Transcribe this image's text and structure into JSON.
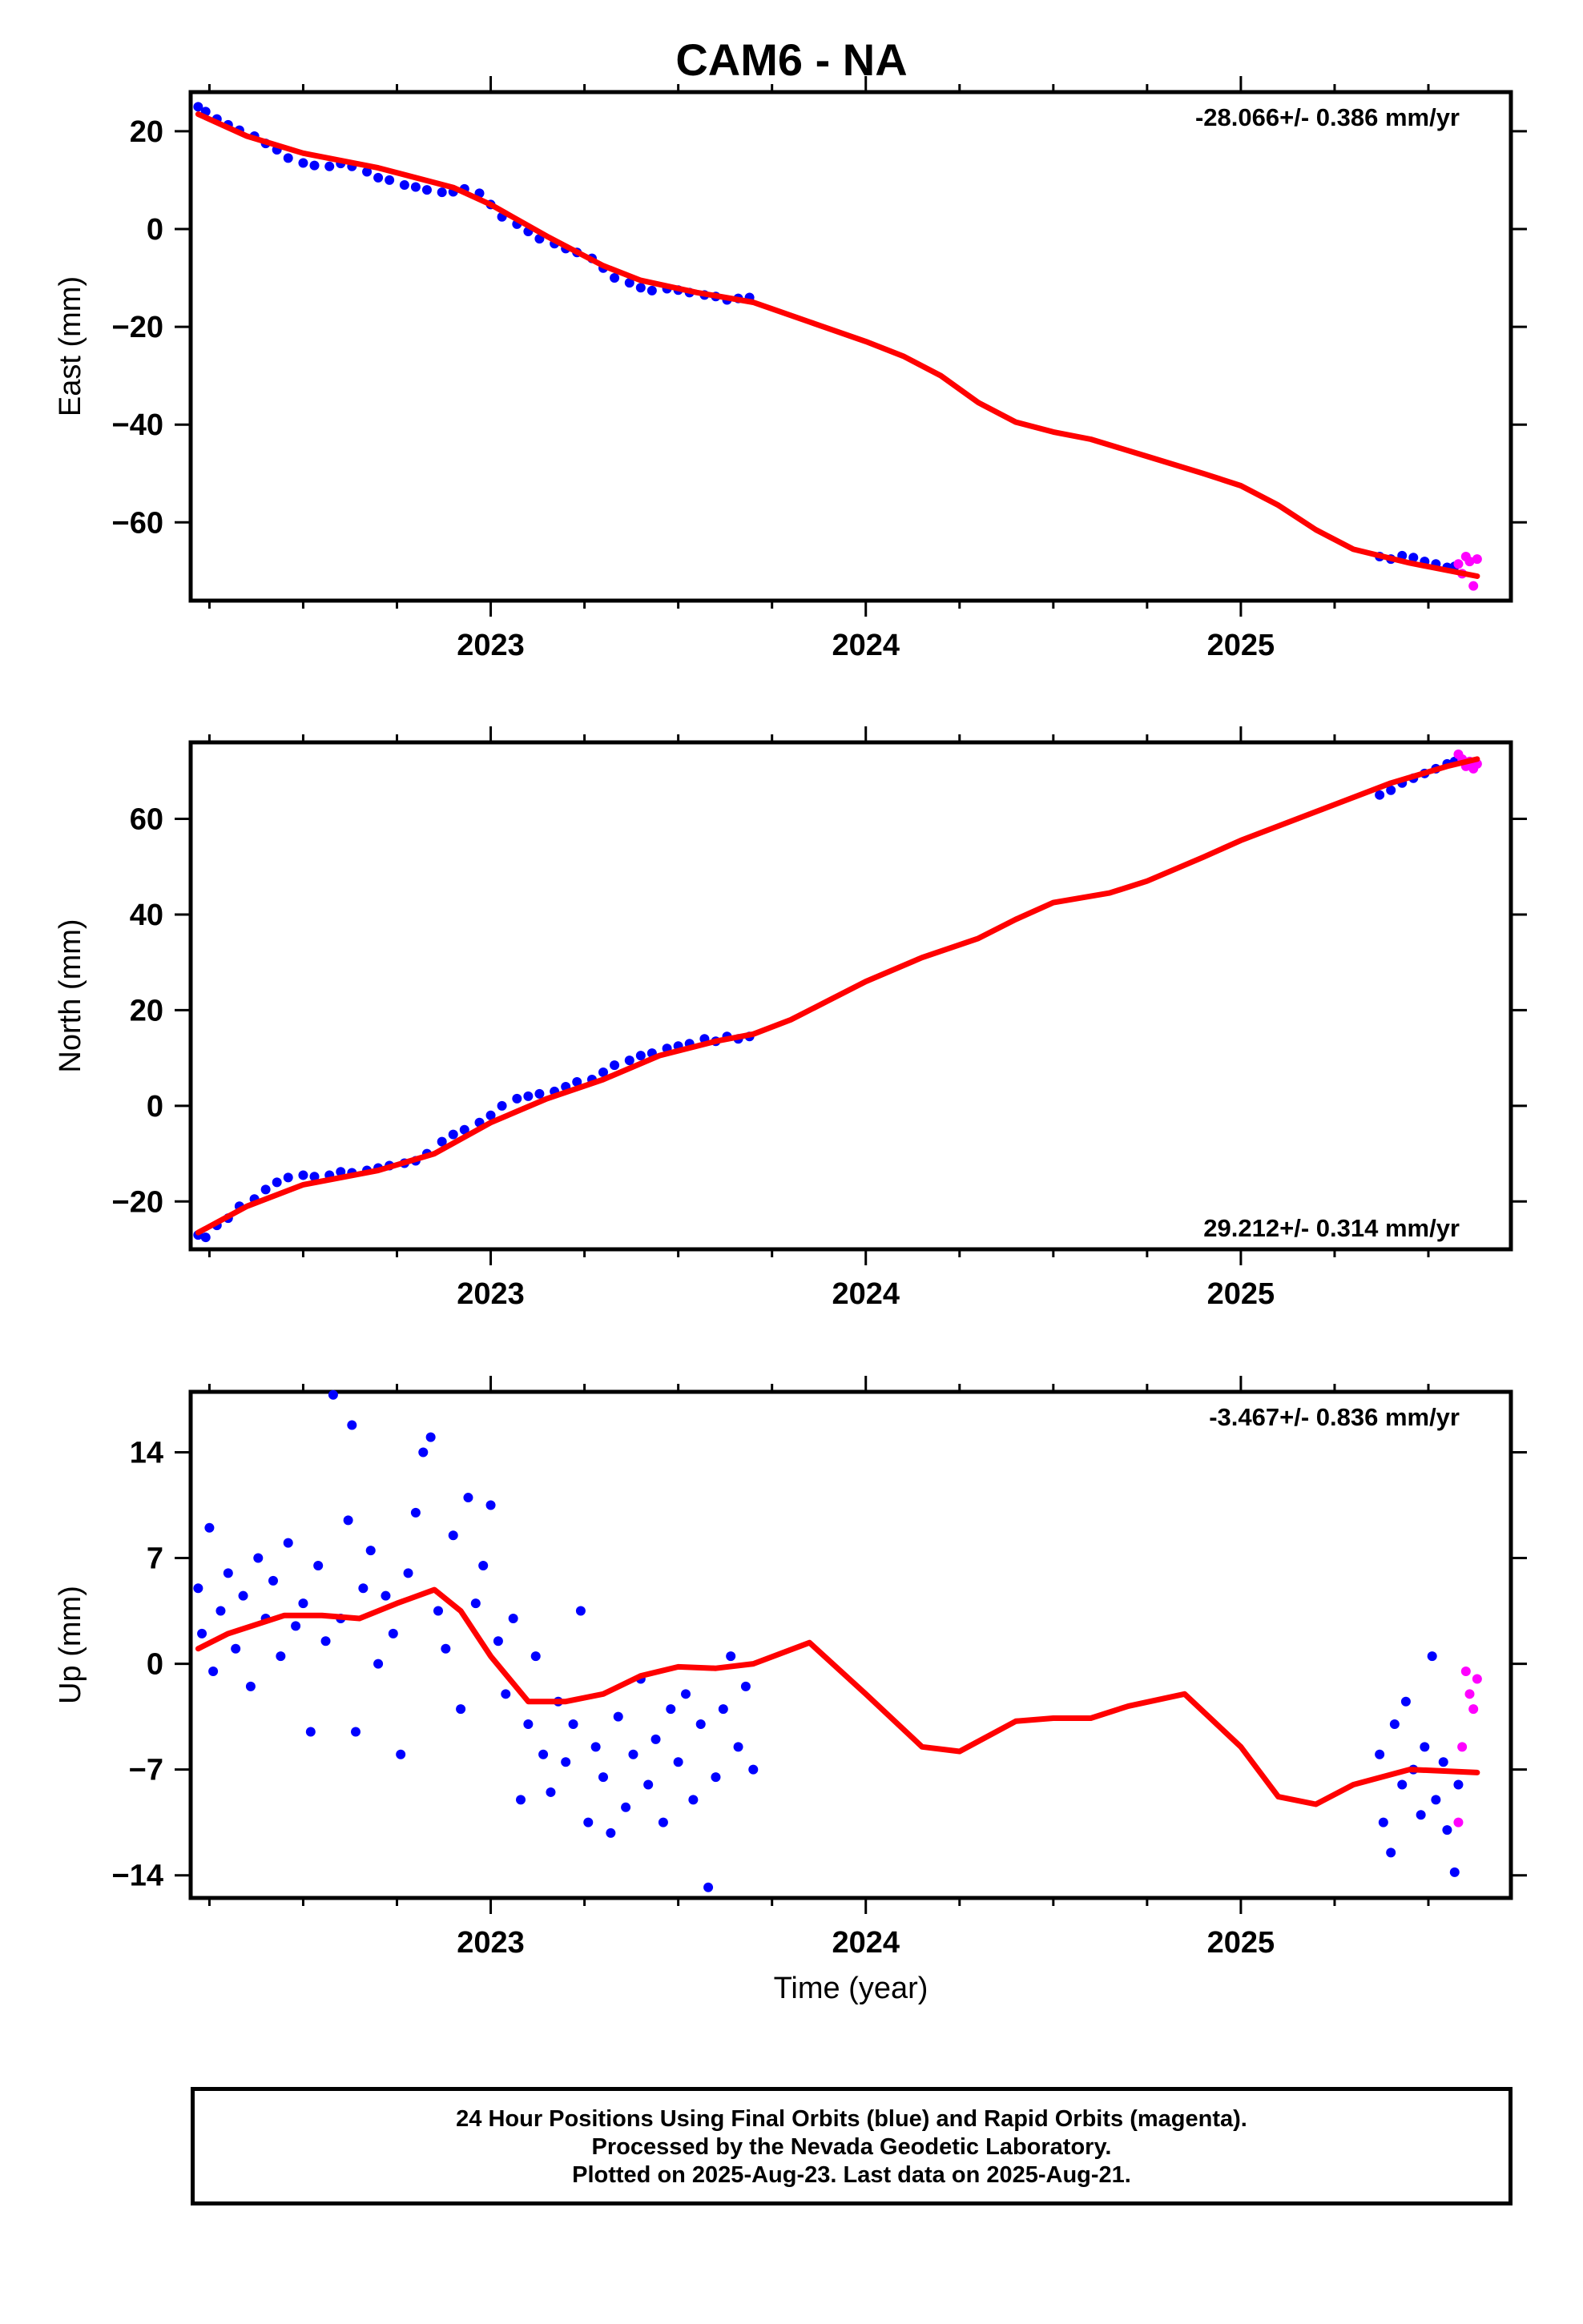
{
  "title": "CAM6 - NA",
  "chart_data": [
    {
      "type": "scatter",
      "ylabel": "East (mm)",
      "xlabel": "",
      "rate_label": "-28.066+/- 0.386 mm/yr",
      "rate_position": "top-right",
      "xlim": [
        2022.2,
        2025.72
      ],
      "ylim": [
        -76,
        28
      ],
      "yticks": [
        20,
        0,
        -20,
        -40,
        -60
      ],
      "ytick_labels": [
        "20",
        "0",
        "−20",
        "−40",
        "−60"
      ],
      "xticks": [
        2023,
        2024,
        2025
      ],
      "xtick_labels": [
        "2023",
        "2024",
        "2025"
      ],
      "final_points": [
        [
          2022.22,
          25.0
        ],
        [
          2022.24,
          24.0
        ],
        [
          2022.27,
          22.5
        ],
        [
          2022.3,
          21.3
        ],
        [
          2022.33,
          20.2
        ],
        [
          2022.37,
          19.0
        ],
        [
          2022.4,
          17.5
        ],
        [
          2022.43,
          16.2
        ],
        [
          2022.46,
          14.5
        ],
        [
          2022.5,
          13.5
        ],
        [
          2022.53,
          13.0
        ],
        [
          2022.57,
          12.8
        ],
        [
          2022.6,
          13.4
        ],
        [
          2022.63,
          12.8
        ],
        [
          2022.67,
          11.7
        ],
        [
          2022.7,
          10.5
        ],
        [
          2022.73,
          10.0
        ],
        [
          2022.77,
          9.0
        ],
        [
          2022.8,
          8.6
        ],
        [
          2022.83,
          8.0
        ],
        [
          2022.87,
          7.5
        ],
        [
          2022.9,
          7.6
        ],
        [
          2022.93,
          8.2
        ],
        [
          2022.97,
          7.3
        ],
        [
          2023.0,
          5.0
        ],
        [
          2023.03,
          2.5
        ],
        [
          2023.07,
          1.0
        ],
        [
          2023.1,
          -0.5
        ],
        [
          2023.13,
          -2.0
        ],
        [
          2023.17,
          -3.0
        ],
        [
          2023.2,
          -4.0
        ],
        [
          2023.23,
          -4.8
        ],
        [
          2023.27,
          -6.0
        ],
        [
          2023.3,
          -8.0
        ],
        [
          2023.33,
          -10.0
        ],
        [
          2023.37,
          -11.0
        ],
        [
          2023.4,
          -12.0
        ],
        [
          2023.43,
          -12.6
        ],
        [
          2023.47,
          -12.2
        ],
        [
          2023.5,
          -12.5
        ],
        [
          2023.53,
          -13.0
        ],
        [
          2023.57,
          -13.5
        ],
        [
          2023.6,
          -13.8
        ],
        [
          2023.63,
          -14.5
        ],
        [
          2023.66,
          -14.2
        ],
        [
          2023.69,
          -14.0
        ],
        [
          2025.37,
          -67.0
        ],
        [
          2025.4,
          -67.5
        ],
        [
          2025.43,
          -66.8
        ],
        [
          2025.46,
          -67.2
        ],
        [
          2025.49,
          -68.0
        ],
        [
          2025.52,
          -68.5
        ],
        [
          2025.55,
          -69.2
        ],
        [
          2025.57,
          -69.0
        ]
      ],
      "rapid_points": [
        [
          2025.58,
          -68.5
        ],
        [
          2025.59,
          -70.5
        ],
        [
          2025.6,
          -67.0
        ],
        [
          2025.61,
          -68.0
        ],
        [
          2025.62,
          -73.0
        ],
        [
          2025.63,
          -67.5
        ]
      ],
      "model_curve": [
        [
          2022.22,
          23.5
        ],
        [
          2022.35,
          19.0
        ],
        [
          2022.5,
          15.5
        ],
        [
          2022.7,
          12.5
        ],
        [
          2022.9,
          8.5
        ],
        [
          2023.0,
          5.0
        ],
        [
          2023.15,
          -1.5
        ],
        [
          2023.3,
          -7.5
        ],
        [
          2023.4,
          -10.5
        ],
        [
          2023.55,
          -13.0
        ],
        [
          2023.7,
          -15.0
        ],
        [
          2023.85,
          -19.0
        ],
        [
          2024.0,
          -23.0
        ],
        [
          2024.1,
          -26.0
        ],
        [
          2024.2,
          -30.0
        ],
        [
          2024.3,
          -35.5
        ],
        [
          2024.4,
          -39.5
        ],
        [
          2024.5,
          -41.5
        ],
        [
          2024.6,
          -43.0
        ],
        [
          2024.75,
          -46.5
        ],
        [
          2024.9,
          -50.0
        ],
        [
          2025.0,
          -52.5
        ],
        [
          2025.1,
          -56.5
        ],
        [
          2025.2,
          -61.5
        ],
        [
          2025.3,
          -65.5
        ],
        [
          2025.45,
          -68.3
        ],
        [
          2025.63,
          -71.0
        ]
      ]
    },
    {
      "type": "scatter",
      "ylabel": "North (mm)",
      "xlabel": "",
      "rate_label": "29.212+/- 0.314 mm/yr",
      "rate_position": "bottom-right",
      "xlim": [
        2022.2,
        2025.72
      ],
      "ylim": [
        -30,
        76
      ],
      "yticks": [
        60,
        40,
        20,
        0,
        -20
      ],
      "ytick_labels": [
        "60",
        "40",
        "20",
        "0",
        "−20"
      ],
      "xticks": [
        2023,
        2024,
        2025
      ],
      "xtick_labels": [
        "2023",
        "2024",
        "2025"
      ],
      "final_points": [
        [
          2022.22,
          -27.0
        ],
        [
          2022.24,
          -27.5
        ],
        [
          2022.27,
          -25.0
        ],
        [
          2022.3,
          -23.5
        ],
        [
          2022.33,
          -21.0
        ],
        [
          2022.37,
          -19.5
        ],
        [
          2022.4,
          -17.5
        ],
        [
          2022.43,
          -16.0
        ],
        [
          2022.46,
          -15.0
        ],
        [
          2022.5,
          -14.5
        ],
        [
          2022.53,
          -14.8
        ],
        [
          2022.57,
          -14.5
        ],
        [
          2022.6,
          -13.8
        ],
        [
          2022.63,
          -14.0
        ],
        [
          2022.67,
          -13.5
        ],
        [
          2022.7,
          -13.0
        ],
        [
          2022.73,
          -12.5
        ],
        [
          2022.77,
          -12.0
        ],
        [
          2022.8,
          -11.5
        ],
        [
          2022.83,
          -10.0
        ],
        [
          2022.87,
          -7.5
        ],
        [
          2022.9,
          -6.0
        ],
        [
          2022.93,
          -5.0
        ],
        [
          2022.97,
          -3.5
        ],
        [
          2023.0,
          -2.0
        ],
        [
          2023.03,
          0.0
        ],
        [
          2023.07,
          1.5
        ],
        [
          2023.1,
          2.0
        ],
        [
          2023.13,
          2.5
        ],
        [
          2023.17,
          3.0
        ],
        [
          2023.2,
          4.0
        ],
        [
          2023.23,
          5.0
        ],
        [
          2023.27,
          5.5
        ],
        [
          2023.3,
          7.0
        ],
        [
          2023.33,
          8.5
        ],
        [
          2023.37,
          9.5
        ],
        [
          2023.4,
          10.5
        ],
        [
          2023.43,
          11.0
        ],
        [
          2023.47,
          12.0
        ],
        [
          2023.5,
          12.5
        ],
        [
          2023.53,
          13.0
        ],
        [
          2023.57,
          14.0
        ],
        [
          2023.6,
          13.5
        ],
        [
          2023.63,
          14.5
        ],
        [
          2023.66,
          14.0
        ],
        [
          2023.69,
          14.5
        ],
        [
          2025.37,
          65.0
        ],
        [
          2025.4,
          66.0
        ],
        [
          2025.43,
          67.5
        ],
        [
          2025.46,
          68.5
        ],
        [
          2025.49,
          69.5
        ],
        [
          2025.52,
          70.5
        ],
        [
          2025.55,
          71.5
        ],
        [
          2025.57,
          72.0
        ]
      ],
      "rapid_points": [
        [
          2025.58,
          73.5
        ],
        [
          2025.59,
          72.5
        ],
        [
          2025.6,
          71.0
        ],
        [
          2025.61,
          72.0
        ],
        [
          2025.62,
          70.5
        ],
        [
          2025.63,
          71.5
        ]
      ],
      "model_curve": [
        [
          2022.22,
          -26.5
        ],
        [
          2022.35,
          -21.0
        ],
        [
          2022.5,
          -16.5
        ],
        [
          2022.7,
          -13.5
        ],
        [
          2022.85,
          -10.0
        ],
        [
          2023.0,
          -3.5
        ],
        [
          2023.15,
          1.5
        ],
        [
          2023.3,
          5.5
        ],
        [
          2023.45,
          10.5
        ],
        [
          2023.6,
          13.5
        ],
        [
          2023.7,
          15.0
        ],
        [
          2023.8,
          18.0
        ],
        [
          2023.9,
          22.0
        ],
        [
          2024.0,
          26.0
        ],
        [
          2024.15,
          31.0
        ],
        [
          2024.3,
          35.0
        ],
        [
          2024.4,
          39.0
        ],
        [
          2024.5,
          42.5
        ],
        [
          2024.65,
          44.5
        ],
        [
          2024.75,
          47.0
        ],
        [
          2024.9,
          52.0
        ],
        [
          2025.0,
          55.5
        ],
        [
          2025.1,
          58.5
        ],
        [
          2025.25,
          63.0
        ],
        [
          2025.4,
          67.5
        ],
        [
          2025.55,
          71.0
        ],
        [
          2025.63,
          72.5
        ]
      ]
    },
    {
      "type": "scatter",
      "ylabel": "Up (mm)",
      "xlabel": "Time (year)",
      "rate_label": "-3.467+/- 0.836 mm/yr",
      "rate_position": "top-right",
      "xlim": [
        2022.2,
        2025.72
      ],
      "ylim": [
        -15.5,
        18
      ],
      "yticks": [
        14,
        7,
        0,
        -7,
        -14
      ],
      "ytick_labels": [
        "14",
        "7",
        "0",
        "−7",
        "−14"
      ],
      "xticks": [
        2023,
        2024,
        2025
      ],
      "xtick_labels": [
        "2023",
        "2024",
        "2025"
      ],
      "final_points": [
        [
          2022.22,
          5.0
        ],
        [
          2022.23,
          2.0
        ],
        [
          2022.25,
          9.0
        ],
        [
          2022.26,
          -0.5
        ],
        [
          2022.28,
          3.5
        ],
        [
          2022.3,
          6.0
        ],
        [
          2022.32,
          1.0
        ],
        [
          2022.34,
          4.5
        ],
        [
          2022.36,
          -1.5
        ],
        [
          2022.38,
          7.0
        ],
        [
          2022.4,
          3.0
        ],
        [
          2022.42,
          5.5
        ],
        [
          2022.44,
          0.5
        ],
        [
          2022.46,
          8.0
        ],
        [
          2022.48,
          2.5
        ],
        [
          2022.5,
          4.0
        ],
        [
          2022.52,
          -4.5
        ],
        [
          2022.54,
          6.5
        ],
        [
          2022.56,
          1.5
        ],
        [
          2022.58,
          17.8
        ],
        [
          2022.6,
          3.0
        ],
        [
          2022.62,
          9.5
        ],
        [
          2022.63,
          15.8
        ],
        [
          2022.64,
          -4.5
        ],
        [
          2022.66,
          5.0
        ],
        [
          2022.68,
          7.5
        ],
        [
          2022.7,
          0.0
        ],
        [
          2022.72,
          4.5
        ],
        [
          2022.74,
          2.0
        ],
        [
          2022.76,
          -6.0
        ],
        [
          2022.78,
          6.0
        ],
        [
          2022.8,
          10.0
        ],
        [
          2022.82,
          14.0
        ],
        [
          2022.84,
          15.0
        ],
        [
          2022.86,
          3.5
        ],
        [
          2022.88,
          1.0
        ],
        [
          2022.9,
          8.5
        ],
        [
          2022.92,
          -3.0
        ],
        [
          2022.94,
          11.0
        ],
        [
          2022.96,
          4.0
        ],
        [
          2022.98,
          6.5
        ],
        [
          2023.0,
          10.5
        ],
        [
          2023.02,
          1.5
        ],
        [
          2023.04,
          -2.0
        ],
        [
          2023.06,
          3.0
        ],
        [
          2023.08,
          -9.0
        ],
        [
          2023.1,
          -4.0
        ],
        [
          2023.12,
          0.5
        ],
        [
          2023.14,
          -6.0
        ],
        [
          2023.16,
          -8.5
        ],
        [
          2023.18,
          -2.5
        ],
        [
          2023.2,
          -6.5
        ],
        [
          2023.22,
          -4.0
        ],
        [
          2023.24,
          3.5
        ],
        [
          2023.26,
          -10.5
        ],
        [
          2023.28,
          -5.5
        ],
        [
          2023.3,
          -7.5
        ],
        [
          2023.32,
          -11.2
        ],
        [
          2023.34,
          -3.5
        ],
        [
          2023.36,
          -9.5
        ],
        [
          2023.38,
          -6.0
        ],
        [
          2023.4,
          -1.0
        ],
        [
          2023.42,
          -8.0
        ],
        [
          2023.44,
          -5.0
        ],
        [
          2023.46,
          -10.5
        ],
        [
          2023.48,
          -3.0
        ],
        [
          2023.5,
          -6.5
        ],
        [
          2023.52,
          -2.0
        ],
        [
          2023.54,
          -9.0
        ],
        [
          2023.56,
          -4.0
        ],
        [
          2023.58,
          -14.8
        ],
        [
          2023.6,
          -7.5
        ],
        [
          2023.62,
          -3.0
        ],
        [
          2023.64,
          0.5
        ],
        [
          2023.66,
          -5.5
        ],
        [
          2023.68,
          -1.5
        ],
        [
          2023.7,
          -7.0
        ],
        [
          2025.37,
          -6.0
        ],
        [
          2025.38,
          -10.5
        ],
        [
          2025.4,
          -12.5
        ],
        [
          2025.41,
          -4.0
        ],
        [
          2025.43,
          -8.0
        ],
        [
          2025.44,
          -2.5
        ],
        [
          2025.46,
          -7.0
        ],
        [
          2025.48,
          -10.0
        ],
        [
          2025.49,
          -5.5
        ],
        [
          2025.51,
          0.5
        ],
        [
          2025.52,
          -9.0
        ],
        [
          2025.54,
          -6.5
        ],
        [
          2025.55,
          -11.0
        ],
        [
          2025.57,
          -13.8
        ],
        [
          2025.58,
          -8.0
        ]
      ],
      "rapid_points": [
        [
          2025.58,
          -10.5
        ],
        [
          2025.59,
          -5.5
        ],
        [
          2025.6,
          -0.5
        ],
        [
          2025.61,
          -2.0
        ],
        [
          2025.62,
          -3.0
        ],
        [
          2025.63,
          -1.0
        ]
      ],
      "model_curve": [
        [
          2022.22,
          1.0
        ],
        [
          2022.3,
          2.0
        ],
        [
          2022.45,
          3.2
        ],
        [
          2022.55,
          3.2
        ],
        [
          2022.65,
          3.0
        ],
        [
          2022.75,
          4.0
        ],
        [
          2022.85,
          4.9
        ],
        [
          2022.92,
          3.5
        ],
        [
          2023.0,
          0.5
        ],
        [
          2023.1,
          -2.5
        ],
        [
          2023.2,
          -2.5
        ],
        [
          2023.3,
          -2.0
        ],
        [
          2023.4,
          -0.8
        ],
        [
          2023.5,
          -0.2
        ],
        [
          2023.6,
          -0.3
        ],
        [
          2023.7,
          0.0
        ],
        [
          2023.85,
          1.4
        ],
        [
          2024.0,
          -2.0
        ],
        [
          2024.15,
          -5.5
        ],
        [
          2024.25,
          -5.8
        ],
        [
          2024.4,
          -3.8
        ],
        [
          2024.5,
          -3.6
        ],
        [
          2024.6,
          -3.6
        ],
        [
          2024.7,
          -2.8
        ],
        [
          2024.85,
          -2.0
        ],
        [
          2025.0,
          -5.5
        ],
        [
          2025.1,
          -8.8
        ],
        [
          2025.2,
          -9.3
        ],
        [
          2025.3,
          -8.0
        ],
        [
          2025.45,
          -7.0
        ],
        [
          2025.63,
          -7.2
        ]
      ]
    }
  ],
  "footer": {
    "line1": "24 Hour Positions Using Final Orbits (blue) and Rapid Orbits (magenta).",
    "line2": "Processed by the Nevada Geodetic Laboratory.",
    "line3": "Plotted on 2025-Aug-23. Last data on 2025-Aug-21."
  },
  "colors": {
    "final": "#0000ff",
    "rapid": "#ff00ff",
    "model": "#ff0000",
    "axis": "#000000"
  }
}
